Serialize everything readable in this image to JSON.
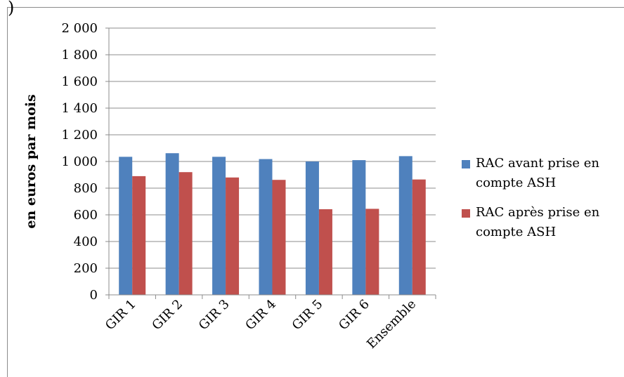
{
  "chart_data": {
    "type": "bar",
    "categories": [
      "GIR 1",
      "GIR 2",
      "GIR 3",
      "GIR 4",
      "GIR 5",
      "GIR 6",
      "Ensemble"
    ],
    "series": [
      {
        "name": "RAC avant prise en compte ASH",
        "color": "#4f81bd",
        "values": [
          1035,
          1062,
          1035,
          1018,
          1000,
          1010,
          1040
        ]
      },
      {
        "name": "RAC après prise en compte ASH",
        "color": "#c0504d",
        "values": [
          890,
          920,
          880,
          862,
          642,
          645,
          865
        ]
      }
    ],
    "yticks": [
      "0",
      "200",
      "400",
      "600",
      "800",
      "1 000",
      "1 200",
      "1 400",
      "1 600",
      "1 800",
      "2 000"
    ],
    "ylim": [
      0,
      2000
    ],
    "ylabel": "en euros par mois",
    "xlabel": "",
    "title": "",
    "grid": true,
    "legend": "right"
  },
  "page": {
    "corner_mark": ")"
  }
}
